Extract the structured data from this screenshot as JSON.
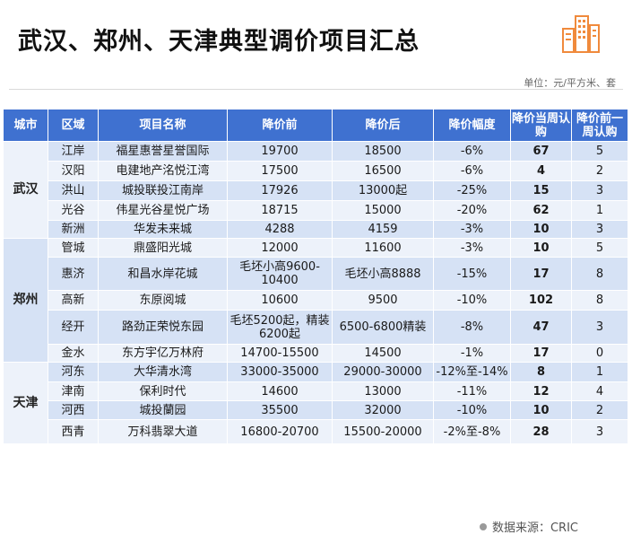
{
  "page": {
    "title": "武汉、郑州、天津典型调价项目汇总",
    "unit": "单位：元/平方米、套",
    "source": "数据来源：CRIC"
  },
  "brand": {
    "accent": "#3f71d0",
    "logo_icon": "building-icon",
    "logo_color": "#f08a3c"
  },
  "table": {
    "headers": [
      "城市",
      "区域",
      "项目名称",
      "降价前",
      "降价后",
      "降价幅度",
      "降价当周认购",
      "降价前一周认购"
    ],
    "groups": [
      {
        "city": "武汉",
        "rows": [
          [
            "江岸",
            "福星惠誉星誉国际",
            "19700",
            "18500",
            "-6%",
            "67",
            "5"
          ],
          [
            "汉阳",
            "电建地产洺悦江湾",
            "17500",
            "16500",
            "-6%",
            "4",
            "2"
          ],
          [
            "洪山",
            "城投联投江南岸",
            "17926",
            "13000起",
            "-25%",
            "15",
            "3"
          ],
          [
            "光谷",
            "伟星光谷星悦广场",
            "18715",
            "15000",
            "-20%",
            "62",
            "1"
          ],
          [
            "新洲",
            "华发未来城",
            "4288",
            "4159",
            "-3%",
            "10",
            "3"
          ]
        ]
      },
      {
        "city": "郑州",
        "rows": [
          [
            "管城",
            "鼎盛阳光城",
            "12000",
            "11600",
            "-3%",
            "10",
            "5"
          ],
          [
            "惠济",
            "和昌水岸花城",
            "毛坯小高9600-10400",
            "毛坯小高8888",
            "-15%",
            "17",
            "8"
          ],
          [
            "高新",
            "东原阅城",
            "10600",
            "9500",
            "-10%",
            "102",
            "8"
          ],
          [
            "经开",
            "路劲正荣悦东园",
            "毛坯5200起，精装6200起",
            "6500-6800精装",
            "-8%",
            "47",
            "3"
          ],
          [
            "金水",
            "东方宇亿万林府",
            "14700-15500",
            "14500",
            "-1%",
            "17",
            "0"
          ]
        ]
      },
      {
        "city": "天津",
        "rows": [
          [
            "河东",
            "大华清水湾",
            "33000-35000",
            "29000-30000",
            "-12%至-14%",
            "8",
            "1"
          ],
          [
            "津南",
            "保利时代",
            "14600",
            "13000",
            "-11%",
            "12",
            "4"
          ],
          [
            "河西",
            "城投蘭园",
            "35500",
            "32000",
            "-10%",
            "10",
            "2"
          ],
          [
            "西青",
            "万科翡翠大道",
            "16800-20700",
            "15500-20000",
            "-2%至-8%",
            "28",
            "3"
          ]
        ]
      }
    ]
  }
}
